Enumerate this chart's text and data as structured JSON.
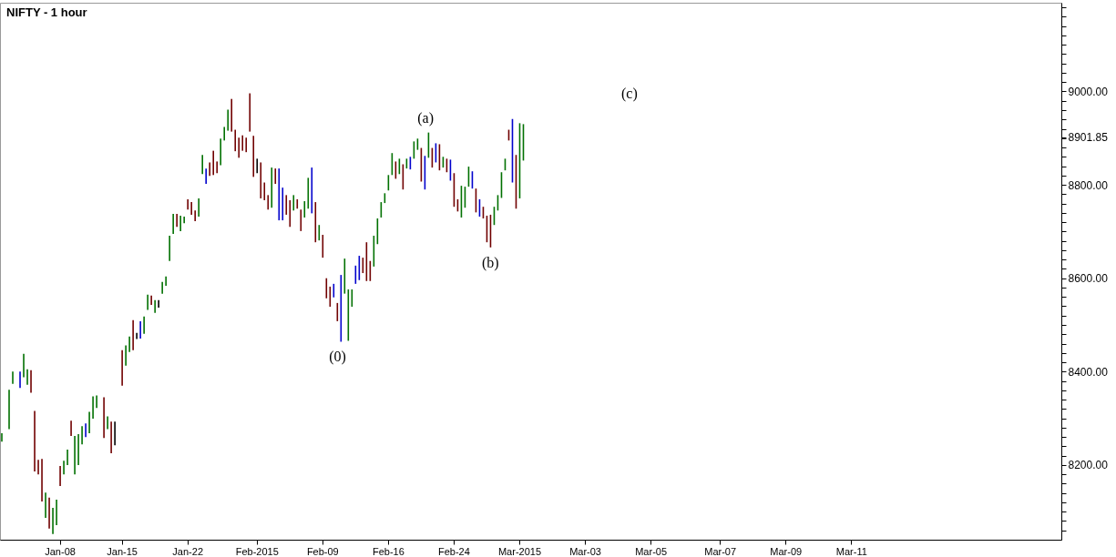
{
  "chart_data": {
    "type": "bar",
    "title": "NIFTY - 1 hour",
    "categories": [
      null,
      null,
      null,
      null,
      null,
      null,
      null,
      null,
      null,
      null,
      null,
      null,
      null,
      null,
      null,
      null,
      "Jan-08",
      null,
      null,
      null,
      null,
      null,
      null,
      null,
      null,
      null,
      null,
      null,
      null,
      null,
      null,
      null,
      null,
      "Jan-15",
      null,
      null,
      null,
      null,
      null,
      null,
      null,
      null,
      null,
      null,
      null,
      null,
      null,
      null,
      null,
      null,
      null,
      "Jan-22",
      null,
      null,
      null,
      null,
      null,
      null,
      null,
      null,
      null,
      null,
      null,
      null,
      null,
      null,
      null,
      null,
      null,
      null,
      "Feb-2015",
      null,
      null,
      null,
      null,
      null,
      null,
      null,
      null,
      null,
      null,
      null,
      null,
      null,
      null,
      null,
      null,
      null,
      "Feb-09",
      null,
      null,
      null,
      null,
      null,
      null,
      null,
      null,
      null,
      null,
      null,
      null,
      null,
      null,
      null,
      null,
      null,
      "Feb-16",
      null,
      null,
      null,
      null,
      null,
      null,
      null,
      null,
      null,
      null,
      null,
      null,
      null,
      null,
      null,
      null,
      null,
      "Feb-24",
      null,
      null,
      null,
      null,
      null,
      null,
      null,
      null,
      null,
      null,
      null,
      null,
      null,
      null,
      null,
      null,
      null,
      "Mar-2015",
      null,
      null,
      null,
      null,
      null,
      null,
      null,
      null,
      null,
      null,
      null,
      null,
      null,
      null,
      null,
      null,
      null,
      "Mar-03",
      null,
      null,
      null,
      null,
      null,
      null,
      null,
      null,
      null,
      null,
      null,
      null,
      null,
      null,
      null,
      null,
      null,
      "Mar-05",
      null,
      null,
      null,
      null,
      null,
      null,
      null,
      null,
      null,
      null,
      null,
      null,
      null,
      null,
      null,
      null,
      null,
      null,
      "Mar-07",
      null,
      null,
      null,
      null,
      null,
      null,
      null,
      null,
      null,
      null,
      null,
      null,
      null,
      null,
      null,
      null,
      null,
      "Mar-09",
      null,
      null,
      null,
      null,
      null,
      null,
      null,
      null,
      null,
      null,
      null,
      null,
      null,
      null,
      null,
      null,
      null,
      "Mar-11",
      null,
      null,
      null,
      null,
      null,
      null,
      null,
      null,
      null,
      null,
      null,
      null,
      null,
      null,
      null,
      null,
      null,
      null,
      null,
      null,
      null,
      null,
      null,
      null,
      null,
      null,
      null,
      null,
      null,
      null,
      null,
      null,
      null,
      null,
      null,
      null,
      null,
      null,
      null,
      null,
      null,
      null,
      null,
      null,
      null,
      null,
      null,
      null,
      null,
      null,
      null,
      null,
      null,
      null,
      null,
      null,
      null
    ],
    "base": [
      8250,
      null,
      8277,
      8374,
      null,
      8365,
      8388,
      8372,
      8355,
      8186,
      8180,
      8122,
      8087,
      8064,
      8052,
      8071,
      8155,
      8180,
      8200,
      8262,
      8180,
      8200,
      8244,
      8260,
      8268,
      8299,
      8322,
      null,
      8258,
      8277,
      8225,
      8242,
      null,
      8370,
      8413,
      8442,
      8446,
      8470,
      8471,
      8481,
      8532,
      8543,
      8526,
      8537,
      8567,
      8584,
      8637,
      8695,
      8710,
      8701,
      8718,
      8747,
      8736,
      8722,
      8732,
      8823,
      8802,
      8819,
      8821,
      8825,
      8842,
      8895,
      8916,
      8914,
      8872,
      8858,
      8873,
      8870,
      8914,
      8817,
      8825,
      8771,
      8767,
      8747,
      8751,
      8802,
      8724,
      8724,
      8736,
      8710,
      8745,
      8749,
      8701,
      8730,
      8749,
      8739,
      8677,
      8681,
      8644,
      8557,
      8539,
      8559,
      8508,
      8464,
      8567,
      8466,
      8539,
      8588,
      8596,
      8611,
      8594,
      8594,
      8625,
      8673,
      8730,
      8761,
      8788,
      8821,
      8813,
      8823,
      8790,
      8835,
      8833,
      8856,
      8875,
      8807,
      8790,
      8858,
      8837,
      8848,
      8831,
      8837,
      8827,
      8809,
      8753,
      8743,
      8730,
      8751,
      8796,
      8792,
      8741,
      8732,
      8728,
      8677,
      8666,
      8714,
      8745,
      8772,
      8831,
      8895,
      8805,
      8749,
      8771,
      8852,
      null,
      null,
      null,
      null,
      null,
      null,
      null,
      null,
      null,
      null,
      null,
      null,
      null,
      null,
      null,
      null,
      null,
      null,
      null,
      null,
      null,
      null,
      null,
      null,
      null,
      null,
      null,
      null,
      null,
      null,
      null,
      null,
      null,
      null,
      null,
      null,
      null,
      null,
      null,
      null,
      null,
      null,
      null,
      null,
      null,
      null,
      null,
      null,
      null,
      null,
      null,
      null,
      null,
      null,
      null,
      null,
      null,
      null,
      null,
      null,
      null,
      null,
      null,
      null,
      null,
      null,
      null,
      null,
      null,
      null,
      null,
      null,
      null,
      null,
      null,
      null,
      null,
      null,
      null,
      null,
      null,
      null,
      null,
      null,
      null,
      null,
      null,
      null,
      null,
      null,
      null,
      null,
      null,
      null,
      null,
      null,
      null,
      null,
      null,
      null,
      null,
      null,
      null,
      null,
      null,
      null,
      null,
      null,
      null,
      null,
      null,
      null,
      null,
      null,
      null,
      null,
      null,
      null,
      null,
      null,
      null,
      null,
      null,
      null,
      null,
      null,
      null,
      null,
      null,
      null,
      null,
      null,
      null,
      null,
      null,
      null,
      null,
      null,
      null,
      null,
      null,
      null,
      null,
      null,
      null,
      null,
      null
    ],
    "values": [
      18,
      null,
      84,
      26,
      null,
      35,
      50,
      33,
      48,
      130,
      31,
      91,
      54,
      66,
      56,
      55,
      43,
      29,
      33,
      33,
      82,
      66,
      39,
      29,
      46,
      48,
      27,
      null,
      87,
      27,
      68,
      51,
      null,
      76,
      43,
      33,
      64,
      13,
      37,
      37,
      33,
      20,
      27,
      16,
      25,
      20,
      54,
      43,
      28,
      33,
      14,
      22,
      27,
      23,
      39,
      41,
      33,
      29,
      52,
      25,
      57,
      29,
      45,
      70,
      46,
      43,
      33,
      31,
      82,
      88,
      31,
      77,
      38,
      31,
      86,
      33,
      111,
      70,
      42,
      57,
      33,
      20,
      46,
      35,
      66,
      98,
      86,
      33,
      49,
      43,
      43,
      29,
      39,
      143,
      75,
      110,
      37,
      39,
      52,
      33,
      83,
      43,
      66,
      55,
      33,
      21,
      33,
      47,
      37,
      33,
      54,
      21,
      27,
      37,
      24,
      72,
      72,
      54,
      42,
      41,
      56,
      23,
      29,
      45,
      72,
      26,
      68,
      45,
      43,
      37,
      51,
      37,
      25,
      57,
      70,
      39,
      33,
      55,
      25,
      23,
      136,
      115,
      161,
      78,
      null,
      null,
      null,
      null,
      null,
      null,
      null,
      null,
      null,
      null,
      null,
      null,
      null,
      null,
      null,
      null,
      null,
      null,
      null,
      null,
      null,
      null,
      null,
      null,
      null,
      null,
      null,
      null,
      null,
      null,
      null,
      null,
      null,
      null,
      null,
      null,
      null,
      null,
      null,
      null,
      null,
      null,
      null,
      null,
      null,
      null,
      null,
      null,
      null,
      null,
      null,
      null,
      null,
      null,
      null,
      null,
      null,
      null,
      null,
      null,
      null,
      null,
      null,
      null,
      null,
      null,
      null,
      null,
      null,
      null,
      null,
      null,
      null,
      null,
      null,
      null,
      null,
      null,
      null,
      null,
      null,
      null,
      null,
      null,
      null,
      null,
      null,
      null,
      null,
      null,
      null,
      null,
      null,
      null,
      null,
      null,
      null,
      null,
      null,
      null,
      null,
      null,
      null,
      null,
      null,
      null,
      null,
      null,
      null,
      null,
      null,
      null,
      null,
      null,
      null,
      null,
      null,
      null,
      null,
      null,
      null,
      null,
      null,
      null,
      null,
      null,
      null,
      null,
      null,
      null,
      null,
      null,
      null,
      null,
      null,
      null,
      null,
      null,
      null,
      null,
      null,
      null,
      null,
      null,
      null,
      null,
      null
    ],
    "colors": [
      "#007000",
      null,
      "#007000",
      "#007000",
      null,
      "#0000cc",
      "#007000",
      "#007000",
      "#700000",
      "#700000",
      "#700000",
      "#700000",
      "#007000",
      "#700000",
      "#007000",
      "#007000",
      "#700000",
      "#007000",
      "#007000",
      "#700000",
      "#007000",
      "#007000",
      "#007000",
      "#0000cc",
      "#007000",
      "#007000",
      "#007000",
      null,
      "#700000",
      "#007000",
      "#700000",
      "#000000",
      null,
      "#700000",
      "#007000",
      "#007000",
      "#700000",
      "#000000",
      "#0000cc",
      "#007000",
      "#007000",
      "#700000",
      "#007000",
      "#000000",
      "#007000",
      "#007000",
      "#007000",
      "#007000",
      "#700000",
      "#007000",
      "#007000",
      "#700000",
      "#700000",
      "#700000",
      "#007000",
      "#007000",
      "#0000cc",
      "#700000",
      "#700000",
      "#700000",
      "#007000",
      "#007000",
      "#007000",
      "#700000",
      "#700000",
      "#700000",
      "#700000",
      "#700000",
      "#700000",
      "#700000",
      "#000000",
      "#700000",
      "#700000",
      "#700000",
      "#007000",
      "#700000",
      "#0000cc",
      "#0000cc",
      "#700000",
      "#700000",
      "#007000",
      "#700000",
      "#700000",
      "#007000",
      "#007000",
      "#0000cc",
      "#700000",
      "#007000",
      "#700000",
      "#700000",
      "#700000",
      "#0000cc",
      "#700000",
      "#0000cc",
      "#007000",
      "#007000",
      "#007000",
      "#0000cc",
      "#0000cc",
      "#700000",
      "#700000",
      "#700000",
      "#007000",
      "#007000",
      "#007000",
      "#007000",
      "#007000",
      "#007000",
      "#700000",
      "#007000",
      "#700000",
      "#007000",
      "#0000cc",
      "#007000",
      "#007000",
      "#700000",
      "#0000cc",
      "#007000",
      "#700000",
      "#0000cc",
      "#700000",
      "#007000",
      "#700000",
      "#0000cc",
      "#700000",
      "#700000",
      "#007000",
      "#007000",
      "#007000",
      "#0000cc",
      "#700000",
      "#0000cc",
      "#700000",
      "#700000",
      "#700000",
      "#007000",
      "#007000",
      "#007000",
      "#007000",
      "#700000",
      "#0000cc",
      "#700000",
      "#007000",
      "#007000",
      null,
      null,
      null,
      null,
      null,
      null,
      null,
      null,
      null,
      null,
      null,
      null,
      null,
      null,
      null,
      null,
      null,
      null,
      null,
      null,
      null,
      null,
      null,
      null,
      null,
      null,
      null,
      null,
      null,
      null,
      null,
      null,
      null,
      null,
      null,
      null,
      null,
      null,
      null,
      null,
      null,
      null,
      null,
      null,
      null,
      null,
      null,
      null,
      null,
      null,
      null,
      null,
      null,
      null,
      null,
      null,
      null,
      null,
      null,
      null,
      null,
      null,
      null,
      null,
      null,
      null,
      null,
      null,
      null,
      null,
      null,
      null,
      null,
      null,
      null,
      null,
      null,
      null,
      null,
      null,
      null,
      null,
      null,
      null,
      null,
      null,
      null,
      null,
      null,
      null,
      null,
      null,
      null,
      null,
      null,
      null,
      null,
      null,
      null,
      null,
      null,
      null,
      null,
      null,
      null,
      null,
      null,
      null,
      null,
      null,
      null,
      null,
      null,
      null,
      null,
      null,
      null,
      null,
      null,
      null,
      null,
      null,
      null,
      null,
      null,
      null,
      null,
      null,
      null,
      null,
      null,
      null,
      null,
      null,
      null,
      null,
      null,
      null,
      null,
      null,
      null,
      null,
      null,
      null,
      null,
      null,
      null
    ],
    "ylim": [
      8040,
      9190
    ],
    "yticks": [
      {
        "value": 8060,
        "label": null
      },
      {
        "value": 8080,
        "label": null
      },
      {
        "value": 8100,
        "label": null
      },
      {
        "value": 8120,
        "label": null
      },
      {
        "value": 8140,
        "label": null
      },
      {
        "value": 8160,
        "label": null
      },
      {
        "value": 8180,
        "label": null
      },
      {
        "value": 8200,
        "label": "8200.00"
      },
      {
        "value": 8220,
        "label": null
      },
      {
        "value": 8240,
        "label": null
      },
      {
        "value": 8260,
        "label": null
      },
      {
        "value": 8280,
        "label": null
      },
      {
        "value": 8300,
        "label": null
      },
      {
        "value": 8320,
        "label": null
      },
      {
        "value": 8340,
        "label": null
      },
      {
        "value": 8360,
        "label": null
      },
      {
        "value": 8380,
        "label": null
      },
      {
        "value": 8400,
        "label": "8400.00"
      },
      {
        "value": 8420,
        "label": null
      },
      {
        "value": 8440,
        "label": null
      },
      {
        "value": 8460,
        "label": null
      },
      {
        "value": 8480,
        "label": null
      },
      {
        "value": 8500,
        "label": null
      },
      {
        "value": 8520,
        "label": null
      },
      {
        "value": 8540,
        "label": null
      },
      {
        "value": 8560,
        "label": null
      },
      {
        "value": 8580,
        "label": null
      },
      {
        "value": 8600,
        "label": "8600.00"
      },
      {
        "value": 8620,
        "label": null
      },
      {
        "value": 8640,
        "label": null
      },
      {
        "value": 8660,
        "label": null
      },
      {
        "value": 8680,
        "label": null
      },
      {
        "value": 8700,
        "label": null
      },
      {
        "value": 8720,
        "label": null
      },
      {
        "value": 8740,
        "label": null
      },
      {
        "value": 8760,
        "label": null
      },
      {
        "value": 8780,
        "label": null
      },
      {
        "value": 8800,
        "label": "8800.00"
      },
      {
        "value": 8820,
        "label": null
      },
      {
        "value": 8840,
        "label": null
      },
      {
        "value": 8860,
        "label": null
      },
      {
        "value": 8880,
        "label": null
      },
      {
        "value": 8900,
        "label": null
      },
      {
        "value": 8901.85,
        "label": "8901.85"
      },
      {
        "value": 8920,
        "label": null
      },
      {
        "value": 8940,
        "label": null
      },
      {
        "value": 8960,
        "label": null
      },
      {
        "value": 8980,
        "label": null
      },
      {
        "value": 9000,
        "label": "9000.00"
      },
      {
        "value": 9020,
        "label": null
      },
      {
        "value": 9040,
        "label": null
      },
      {
        "value": 9060,
        "label": null
      },
      {
        "value": 9080,
        "label": null
      },
      {
        "value": 9100,
        "label": null
      },
      {
        "value": 9120,
        "label": null
      },
      {
        "value": 9140,
        "label": null
      },
      {
        "value": 9160,
        "label": null
      },
      {
        "value": 9180,
        "label": null
      }
    ],
    "annotations": [
      "(0)",
      "(a)",
      "(b)",
      "(c)"
    ]
  }
}
